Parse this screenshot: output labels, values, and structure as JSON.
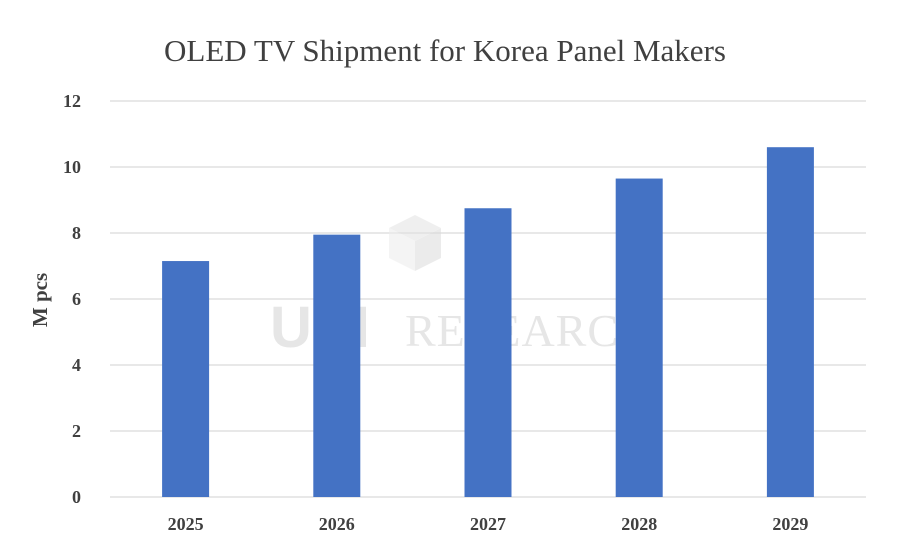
{
  "chart_data": {
    "type": "bar",
    "title": "OLED TV Shipment for Korea Panel Makers",
    "ylabel": "M pcs",
    "xlabel": "",
    "categories": [
      "2025",
      "2026",
      "2027",
      "2028",
      "2029"
    ],
    "values": [
      7.15,
      7.95,
      8.75,
      9.65,
      10.6
    ],
    "ylim": [
      0,
      12
    ],
    "yticks": [
      0,
      2,
      4,
      6,
      8,
      10,
      12
    ],
    "grid": true,
    "legend": "none",
    "bar_color": "#4472c4"
  },
  "watermark": {
    "logo": "UBI",
    "text": "RESEARCH"
  }
}
